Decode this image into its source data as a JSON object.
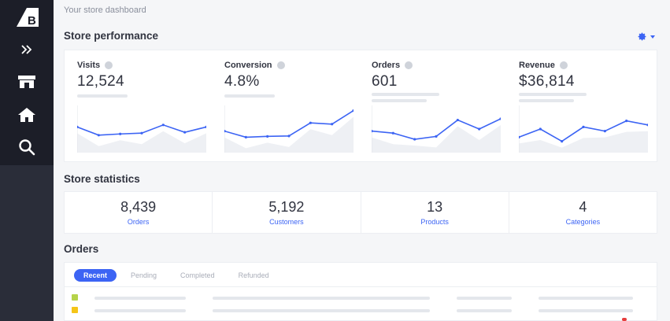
{
  "breadcrumb": "Your store dashboard",
  "sidebar": {
    "items": [
      {
        "icon": "bigcommerce-logo-icon"
      },
      {
        "icon": "expand-icon"
      },
      {
        "icon": "storefront-icon"
      },
      {
        "icon": "home-icon"
      },
      {
        "icon": "search-icon"
      }
    ]
  },
  "performance": {
    "title": "Store performance",
    "metrics": [
      {
        "label": "Visits",
        "value": "12,524",
        "spark": [
          0.55,
          0.35,
          0.38,
          0.4,
          0.6,
          0.42,
          0.55
        ]
      },
      {
        "label": "Conversion",
        "value": "4.8%",
        "spark": [
          0.45,
          0.3,
          0.32,
          0.33,
          0.65,
          0.62,
          0.95
        ]
      },
      {
        "label": "Orders",
        "value": "601",
        "spark": [
          0.45,
          0.4,
          0.25,
          0.32,
          0.72,
          0.5,
          0.75
        ]
      },
      {
        "label": "Revenue",
        "value": "$36,814",
        "spark": [
          0.3,
          0.5,
          0.2,
          0.55,
          0.45,
          0.7,
          0.6
        ]
      }
    ]
  },
  "statistics": {
    "title": "Store statistics",
    "items": [
      {
        "value": "8,439",
        "label": "Orders"
      },
      {
        "value": "5,192",
        "label": "Customers"
      },
      {
        "value": "13",
        "label": "Products"
      },
      {
        "value": "4",
        "label": "Categories"
      }
    ]
  },
  "orders": {
    "title": "Orders",
    "tabs": [
      {
        "label": "Recent",
        "active": true
      },
      {
        "label": "Pending",
        "active": false
      },
      {
        "label": "Completed",
        "active": false
      },
      {
        "label": "Refunded",
        "active": false
      }
    ],
    "row_colors": [
      "#b6d34a",
      "#f5c518"
    ]
  },
  "colors": {
    "accent": "#3c64f4",
    "sidebar": "#1c1e28",
    "background": "#f5f6f8"
  }
}
